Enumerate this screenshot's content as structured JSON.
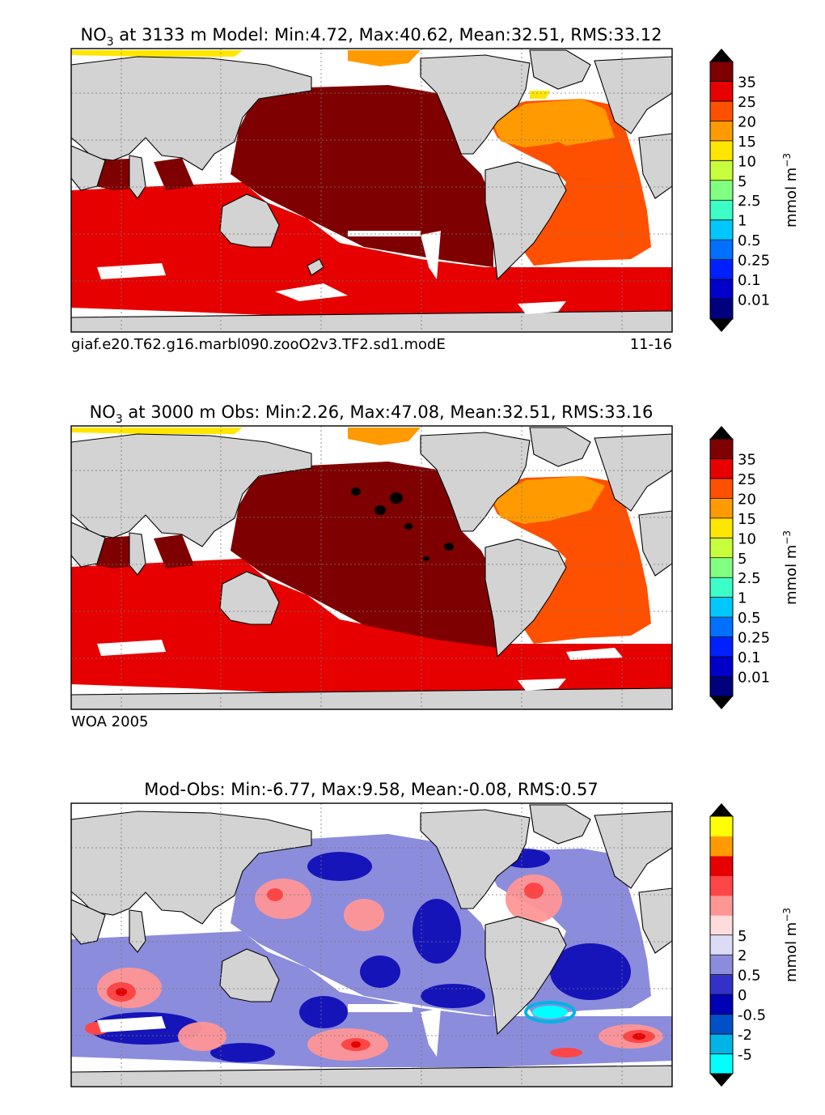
{
  "chart_data": [
    {
      "type": "heatmap",
      "title_main": "NO",
      "title_sub": "3",
      "title_rest": " at 3133 m Model: Min:4.72, Max:40.62, Mean:32.51, RMS:33.12",
      "stats": {
        "depth_m": 3133,
        "min": 4.72,
        "max": 40.62,
        "mean": 32.51,
        "rms": 33.12
      },
      "caption_left": "giaf.e20.T62.g16.marbl090.zooO2v3.TF2.sd1.modE",
      "caption_right": "11-16",
      "colorbar": {
        "label_main": "mmol m",
        "label_sup": "−3",
        "ticks": [
          "0.01",
          "0.1",
          "0.25",
          "0.5",
          "1",
          "2.5",
          "5",
          "10",
          "15",
          "20",
          "25",
          "35"
        ],
        "colors": [
          "#00007f",
          "#0000c8",
          "#0020ff",
          "#0070ff",
          "#00c8ff",
          "#3cffc8",
          "#80ff80",
          "#c8ff3c",
          "#ffe600",
          "#ff9a00",
          "#ff5000",
          "#e60000",
          "#7f0000"
        ],
        "extend": "both"
      }
    },
    {
      "type": "heatmap",
      "title_main": "NO",
      "title_sub": "3",
      "title_rest": " at 3000 m Obs: Min:2.26, Max:47.08, Mean:32.51, RMS:33.16",
      "stats": {
        "depth_m": 3000,
        "min": 2.26,
        "max": 47.08,
        "mean": 32.51,
        "rms": 33.16
      },
      "caption_left": "WOA 2005",
      "caption_right": "",
      "colorbar": {
        "label_main": "mmol m",
        "label_sup": "−3",
        "ticks": [
          "0.01",
          "0.1",
          "0.25",
          "0.5",
          "1",
          "2.5",
          "5",
          "10",
          "15",
          "20",
          "25",
          "35"
        ],
        "colors": [
          "#00007f",
          "#0000c8",
          "#0020ff",
          "#0070ff",
          "#00c8ff",
          "#3cffc8",
          "#80ff80",
          "#c8ff3c",
          "#ffe600",
          "#ff9a00",
          "#ff5000",
          "#e60000",
          "#7f0000"
        ],
        "extend": "both"
      }
    },
    {
      "type": "heatmap",
      "title_main": "Mod-Obs: Min:-6.77, Max:9.58, Mean:-0.08, RMS:0.57",
      "title_sub": "",
      "title_rest": "",
      "stats": {
        "min": -6.77,
        "max": 9.58,
        "mean": -0.08,
        "rms": 0.57
      },
      "caption_left": "",
      "caption_right": "",
      "colorbar": {
        "label_main": "mmol m",
        "label_sup": "−3",
        "ticks": [
          "-5",
          "-2",
          "-0.5",
          "0",
          "0.5",
          "2",
          "5"
        ],
        "colors": [
          "#00ffff",
          "#00b4e6",
          "#0050c8",
          "#0000b4",
          "#3232c8",
          "#8c8cdc",
          "#dcdcf5",
          "#ffdcdc",
          "#ff9696",
          "#ff4646",
          "#e60000",
          "#ff9a00",
          "#ffff00"
        ],
        "extend": "both"
      }
    }
  ],
  "colors": {
    "land": "#d3d3d3",
    "missing": "#ffffff",
    "coast": "#000000",
    "grid": "#777777"
  }
}
